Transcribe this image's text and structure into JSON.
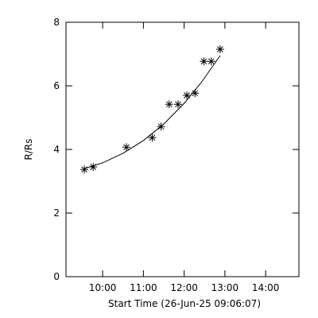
{
  "chart_data": {
    "type": "scatter",
    "xlabel": "Start Time (26-Jun-25 09:06:07)",
    "ylabel": "R/Rs",
    "xlim": [
      546,
      889
    ],
    "ylim": [
      0,
      8
    ],
    "xticks": [
      {
        "value": 600,
        "label": "10:00"
      },
      {
        "value": 660,
        "label": "11:00"
      },
      {
        "value": 720,
        "label": "12:00"
      },
      {
        "value": 780,
        "label": "13:00"
      },
      {
        "value": 840,
        "label": "14:00"
      }
    ],
    "yticks": [
      0,
      2,
      4,
      6,
      8
    ],
    "series": [
      {
        "color": "#000000",
        "marker": "asterisk",
        "x": [
          573,
          586,
          635,
          673,
          686,
          698,
          711,
          724,
          736,
          749,
          760,
          773
        ],
        "values": [
          3.37,
          3.45,
          4.07,
          4.37,
          4.72,
          5.42,
          5.42,
          5.7,
          5.77,
          6.77,
          6.77,
          7.15
        ]
      }
    ],
    "fit": {
      "color": "#000000",
      "x": [
        573,
        600,
        630,
        660,
        690,
        720,
        745,
        773
      ],
      "values": [
        3.4,
        3.58,
        3.88,
        4.28,
        4.8,
        5.45,
        6.1,
        6.95
      ]
    }
  }
}
